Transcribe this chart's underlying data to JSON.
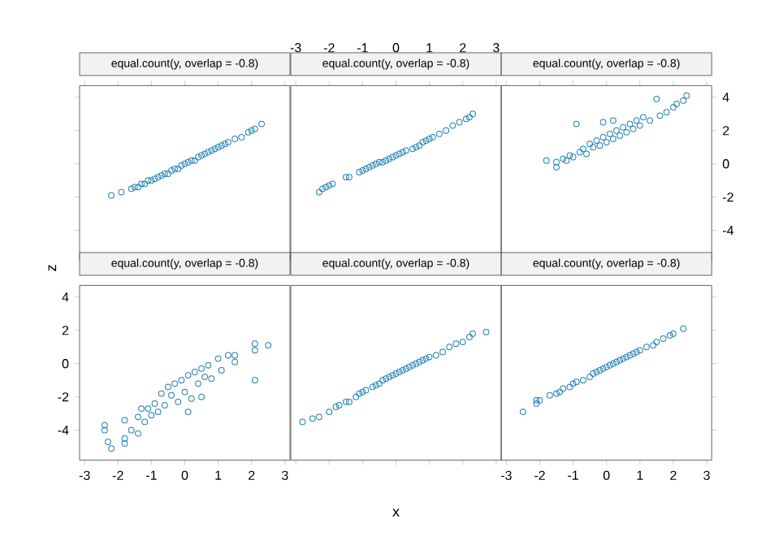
{
  "chart_data": [
    {
      "type": "scatter",
      "title": "equal.count(y, overlap = -0.8)",
      "marker": "circle",
      "color": "#1f80b4",
      "xlim": [
        -3.15,
        3.15
      ],
      "ylim": [
        -5.8,
        4.7
      ],
      "xticks": [
        -3,
        -2,
        -1,
        0,
        1,
        2,
        3
      ],
      "yticks": [
        -4,
        -2,
        0,
        2,
        4
      ],
      "tick_labels": false,
      "x": [
        -2.2,
        -1.9,
        -1.6,
        -1.5,
        -1.4,
        -1.3,
        -1.2,
        -1.1,
        -1.0,
        -0.9,
        -0.8,
        -0.7,
        -0.6,
        -0.5,
        -0.4,
        -0.3,
        -0.2,
        -0.1,
        0.0,
        0.1,
        0.2,
        0.3,
        0.4,
        0.5,
        0.6,
        0.7,
        0.8,
        0.9,
        1.0,
        1.1,
        1.2,
        1.3,
        1.5,
        1.7,
        1.9,
        2.0,
        2.1,
        2.3
      ],
      "values": [
        -1.9,
        -1.7,
        -1.5,
        -1.4,
        -1.4,
        -1.2,
        -1.2,
        -1.0,
        -1.0,
        -0.9,
        -0.8,
        -0.7,
        -0.6,
        -0.6,
        -0.4,
        -0.3,
        -0.3,
        -0.1,
        0.0,
        0.1,
        0.2,
        0.2,
        0.4,
        0.5,
        0.6,
        0.7,
        0.8,
        0.9,
        1.0,
        1.1,
        1.2,
        1.3,
        1.5,
        1.6,
        1.9,
        2.0,
        2.1,
        2.4
      ]
    },
    {
      "type": "scatter",
      "title": "equal.count(y, overlap = -0.8)",
      "marker": "circle",
      "color": "#1f80b4",
      "xlim": [
        -3.15,
        3.15
      ],
      "ylim": [
        -5.8,
        4.7
      ],
      "xticks": [
        -3,
        -2,
        -1,
        0,
        1,
        2,
        3
      ],
      "yticks": [
        -4,
        -2,
        0,
        2,
        4
      ],
      "tick_labels": "x",
      "x": [
        -2.3,
        -2.2,
        -2.1,
        -2.0,
        -1.9,
        -1.5,
        -1.4,
        -1.1,
        -1.0,
        -0.9,
        -0.8,
        -0.7,
        -0.6,
        -0.5,
        -0.4,
        -0.3,
        -0.2,
        -0.1,
        0.0,
        0.1,
        0.2,
        0.3,
        0.5,
        0.6,
        0.7,
        0.8,
        0.9,
        1.0,
        1.1,
        1.3,
        1.5,
        1.7,
        1.9,
        2.1,
        2.2,
        2.3
      ],
      "values": [
        -1.7,
        -1.5,
        -1.4,
        -1.3,
        -1.2,
        -0.8,
        -0.8,
        -0.5,
        -0.4,
        -0.3,
        -0.2,
        -0.1,
        0.0,
        0.1,
        0.1,
        0.2,
        0.3,
        0.4,
        0.5,
        0.6,
        0.7,
        0.8,
        0.9,
        1.0,
        1.1,
        1.3,
        1.4,
        1.5,
        1.6,
        1.8,
        2.0,
        2.3,
        2.5,
        2.7,
        2.8,
        3.0
      ]
    },
    {
      "type": "scatter",
      "title": "equal.count(y, overlap = -0.8)",
      "marker": "circle",
      "color": "#1f80b4",
      "xlim": [
        -3.15,
        3.15
      ],
      "ylim": [
        -5.8,
        4.7
      ],
      "xticks": [
        -3,
        -2,
        -1,
        0,
        1,
        2,
        3
      ],
      "yticks": [
        -4,
        -2,
        0,
        2,
        4
      ],
      "tick_labels": "y",
      "x": [
        -1.8,
        -1.5,
        -1.5,
        -1.3,
        -1.2,
        -1.1,
        -1.0,
        -0.9,
        -0.8,
        -0.7,
        -0.6,
        -0.5,
        -0.4,
        -0.3,
        -0.2,
        -0.1,
        -0.1,
        0.0,
        0.1,
        0.2,
        0.2,
        0.3,
        0.4,
        0.5,
        0.6,
        0.7,
        0.8,
        0.9,
        1.0,
        1.1,
        1.3,
        1.5,
        1.6,
        1.8,
        2.0,
        2.1,
        2.3,
        2.4
      ],
      "values": [
        0.2,
        -0.2,
        0.1,
        0.3,
        0.2,
        0.5,
        0.4,
        2.4,
        0.7,
        0.9,
        0.6,
        1.2,
        1.0,
        1.4,
        1.1,
        1.6,
        2.5,
        1.3,
        1.8,
        2.6,
        1.5,
        2.0,
        1.7,
        2.2,
        1.9,
        2.4,
        2.1,
        2.6,
        2.3,
        2.8,
        2.6,
        3.9,
        2.9,
        3.1,
        3.4,
        3.6,
        3.8,
        4.1
      ]
    },
    {
      "type": "scatter",
      "title": "equal.count(y, overlap = -0.8)",
      "ylabel": "z",
      "marker": "circle",
      "color": "#1f80b4",
      "xlim": [
        -3.15,
        3.15
      ],
      "ylim": [
        -5.8,
        4.7
      ],
      "xticks": [
        -3,
        -2,
        -1,
        0,
        1,
        2,
        3
      ],
      "yticks": [
        -4,
        -2,
        0,
        2,
        4
      ],
      "x": [
        -2.4,
        -2.4,
        -2.3,
        -2.2,
        -1.8,
        -1.8,
        -1.8,
        -1.6,
        -1.4,
        -1.4,
        -1.3,
        -1.2,
        -1.1,
        -1.0,
        -0.9,
        -0.8,
        -0.7,
        -0.6,
        -0.5,
        -0.4,
        -0.3,
        -0.2,
        -0.1,
        0.0,
        0.1,
        0.1,
        0.2,
        0.3,
        0.4,
        0.5,
        0.5,
        0.6,
        0.7,
        0.8,
        1.0,
        1.1,
        1.3,
        1.5,
        1.5,
        2.1,
        2.1,
        2.1,
        2.5
      ],
      "values": [
        -3.7,
        -4.0,
        -4.7,
        -5.1,
        -4.8,
        -4.5,
        -3.4,
        -4.0,
        -4.2,
        -3.2,
        -2.7,
        -3.5,
        -2.7,
        -3.1,
        -2.4,
        -2.9,
        -1.8,
        -2.5,
        -1.4,
        -1.9,
        -1.2,
        -2.3,
        -1.0,
        -1.7,
        -2.9,
        -0.7,
        -2.1,
        -0.5,
        -1.2,
        -0.3,
        -2.0,
        -0.8,
        -0.1,
        -0.9,
        0.3,
        -0.4,
        0.5,
        0.1,
        0.5,
        -1.0,
        0.8,
        1.2,
        1.1
      ]
    },
    {
      "type": "scatter",
      "title": "equal.count(y, overlap = -0.8)",
      "xlabel": "x",
      "marker": "circle",
      "color": "#1f80b4",
      "xlim": [
        -3.15,
        3.15
      ],
      "ylim": [
        -5.8,
        4.7
      ],
      "xticks": [
        -3,
        -2,
        -1,
        0,
        1,
        2,
        3
      ],
      "yticks": [
        -4,
        -2,
        0,
        2,
        4
      ],
      "tick_labels": false,
      "x": [
        -2.8,
        -2.5,
        -2.3,
        -2.0,
        -1.8,
        -1.7,
        -1.5,
        -1.4,
        -1.2,
        -1.1,
        -1.0,
        -0.9,
        -0.7,
        -0.6,
        -0.5,
        -0.4,
        -0.3,
        -0.2,
        -0.1,
        0.0,
        0.1,
        0.2,
        0.3,
        0.4,
        0.5,
        0.6,
        0.7,
        0.8,
        0.9,
        1.0,
        1.2,
        1.4,
        1.6,
        1.8,
        2.0,
        2.2,
        2.3,
        2.7
      ],
      "values": [
        -3.5,
        -3.3,
        -3.2,
        -2.9,
        -2.6,
        -2.5,
        -2.3,
        -2.3,
        -2.0,
        -1.8,
        -1.7,
        -1.6,
        -1.4,
        -1.3,
        -1.2,
        -1.0,
        -0.9,
        -0.8,
        -0.7,
        -0.6,
        -0.5,
        -0.4,
        -0.3,
        -0.2,
        -0.1,
        0.0,
        0.1,
        0.2,
        0.3,
        0.4,
        0.5,
        0.7,
        1.0,
        1.2,
        1.3,
        1.6,
        1.8,
        1.9
      ]
    },
    {
      "type": "scatter",
      "title": "equal.count(y, overlap = -0.8)",
      "marker": "circle",
      "color": "#1f80b4",
      "xlim": [
        -3.15,
        3.15
      ],
      "ylim": [
        -5.8,
        4.7
      ],
      "xticks": [
        -3,
        -2,
        -1,
        0,
        1,
        2,
        3
      ],
      "yticks": [
        -4,
        -2,
        0,
        2,
        4
      ],
      "tick_labels": "x",
      "x": [
        -2.5,
        -2.1,
        -2.1,
        -2.0,
        -1.7,
        -1.5,
        -1.4,
        -1.3,
        -1.1,
        -1.0,
        -0.9,
        -0.7,
        -0.5,
        -0.4,
        -0.3,
        -0.2,
        -0.1,
        0.0,
        0.1,
        0.2,
        0.3,
        0.4,
        0.5,
        0.6,
        0.7,
        0.8,
        0.9,
        1.0,
        1.2,
        1.4,
        1.5,
        1.7,
        1.9,
        2.0,
        2.3
      ],
      "values": [
        -2.9,
        -2.4,
        -2.2,
        -2.2,
        -1.9,
        -1.8,
        -1.7,
        -1.5,
        -1.4,
        -1.2,
        -1.1,
        -1.0,
        -0.8,
        -0.6,
        -0.5,
        -0.4,
        -0.3,
        -0.2,
        -0.1,
        0.0,
        0.1,
        0.2,
        0.3,
        0.4,
        0.5,
        0.6,
        0.7,
        0.8,
        1.0,
        1.1,
        1.3,
        1.5,
        1.7,
        1.8,
        2.1
      ]
    }
  ]
}
